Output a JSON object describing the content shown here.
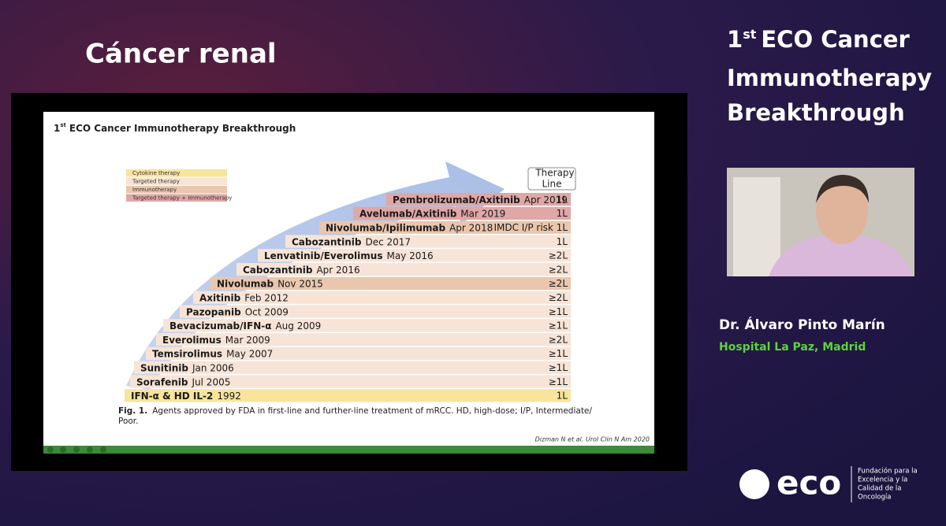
{
  "header": {
    "title": "Cáncer renal",
    "event_number": "1",
    "event_ordinal": "st",
    "event_lines": [
      "ECO Cancer",
      "Immunotherapy",
      "Breakthrough"
    ]
  },
  "slide": {
    "title_number": "1",
    "title_ordinal": "st",
    "title": "ECO Cancer Immunotherapy Breakthrough",
    "legend": [
      {
        "label": "Cytokine therapy",
        "color": "#f8e49a"
      },
      {
        "label": "Targeted therapy",
        "color": "#f7e4d6"
      },
      {
        "label": "Immunotherapy",
        "color": "#e9c6ad"
      },
      {
        "label": "Targeted therapy + Immunotherapy",
        "color": "#dfa7a6"
      }
    ],
    "therapy_line_header": [
      "Therapy",
      "Line"
    ],
    "rows": [
      {
        "drug": "Pembrolizumab/Axitinib",
        "date": "Apr 2019",
        "line": "1L",
        "color": "#dfa7a6"
      },
      {
        "drug": "Avelumab/Axitinib",
        "date": "Mar 2019",
        "line": "1L",
        "color": "#dfa7a6"
      },
      {
        "drug": "Nivolumab/Ipilimumab",
        "date": "Apr 2018",
        "line": "IMDC I/P risk 1L",
        "color": "#e9c6ad"
      },
      {
        "drug": "Cabozantinib",
        "date": "Dec 2017",
        "line": "1L",
        "color": "#f7e4d6"
      },
      {
        "drug": "Lenvatinib/Everolimus",
        "date": "May 2016",
        "line": "≥2L",
        "color": "#f7e4d6"
      },
      {
        "drug": "Cabozantinib",
        "date": "Apr 2016",
        "line": "≥2L",
        "color": "#f7e4d6"
      },
      {
        "drug": "Nivolumab",
        "date": "Nov 2015",
        "line": "≥2L",
        "color": "#e9c6ad"
      },
      {
        "drug": "Axitinib",
        "date": "Feb 2012",
        "line": "≥2L",
        "color": "#f7e4d6"
      },
      {
        "drug": "Pazopanib",
        "date": "Oct 2009",
        "line": "≥1L",
        "color": "#f7e4d6"
      },
      {
        "drug": "Bevacizumab/IFN-α",
        "date": "Aug 2009",
        "line": "≥1L",
        "color": "#f7e4d6"
      },
      {
        "drug": "Everolimus",
        "date": "Mar 2009",
        "line": "≥2L",
        "color": "#f7e4d6"
      },
      {
        "drug": "Temsirolimus",
        "date": "May 2007",
        "line": "≥1L",
        "color": "#f7e4d6"
      },
      {
        "drug": "Sunitinib",
        "date": "Jan 2006",
        "line": "≥1L",
        "color": "#f7e4d6"
      },
      {
        "drug": "Sorafenib",
        "date": "Jul 2005",
        "line": "≥1L",
        "color": "#f7e4d6"
      },
      {
        "drug": "IFN-α & HD IL-2",
        "date": "1992",
        "line": "1L",
        "color": "#f8e49a"
      }
    ],
    "caption_label": "Fig. 1.",
    "caption": [
      "Agents approved by FDA in first-line and further-line treatment of mRCC. HD, high-dose; I/P, Intermediate/",
      "Poor."
    ],
    "citation": "Dizman N et al. Urol Clin N Am 2020"
  },
  "speaker": {
    "name": "Dr. Álvaro Pinto Marín",
    "affiliation": "Hospital La Paz, Madrid"
  },
  "logo": {
    "brand": "eco",
    "foundation": [
      "Fundación para la",
      "Excelencia y la",
      "Calidad de la",
      "Oncología"
    ]
  }
}
